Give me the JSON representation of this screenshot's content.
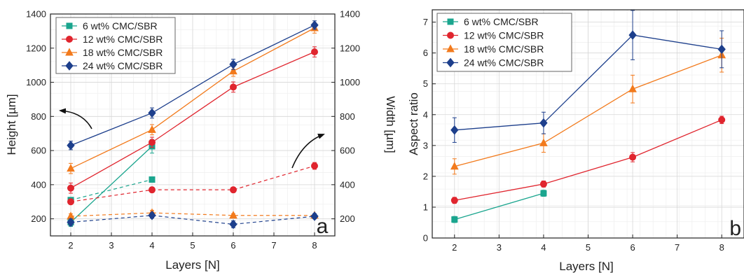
{
  "chart_data": [
    {
      "type": "line",
      "panel_label": "a",
      "xlabel": "Layers [N]",
      "ylabel": "Height [µm]",
      "y2label": "Width [µm]",
      "xlim": [
        1.5,
        8.5
      ],
      "ylim": [
        100,
        1400
      ],
      "y2lim": [
        100,
        1400
      ],
      "xticks": [
        2,
        3,
        4,
        5,
        6,
        7,
        8
      ],
      "yticks": [
        200,
        400,
        600,
        800,
        1000,
        1200,
        1400
      ],
      "y2ticks": [
        200,
        400,
        600,
        800,
        1000,
        1200,
        1400
      ],
      "grid": true,
      "legend_position": "top-left",
      "series": [
        {
          "name": "6 wt% CMC/SBR",
          "color": "#1aa58e",
          "marker": "square",
          "x": [
            2,
            4
          ],
          "height": [
            180,
            625
          ],
          "height_err": [
            25,
            40
          ],
          "width": [
            310,
            430
          ],
          "width_err": [
            15,
            15
          ]
        },
        {
          "name": "12 wt% CMC/SBR",
          "color": "#e0252e",
          "marker": "circle",
          "x": [
            2,
            4,
            6,
            8
          ],
          "height": [
            380,
            648,
            972,
            1178
          ],
          "height_err": [
            30,
            30,
            30,
            30
          ],
          "width": [
            300,
            370,
            370,
            510
          ],
          "width_err": [
            15,
            15,
            15,
            20
          ]
        },
        {
          "name": "18 wt% CMC/SBR",
          "color": "#f27a1c",
          "marker": "triangle",
          "x": [
            2,
            4,
            6,
            8
          ],
          "height": [
            495,
            722,
            1065,
            1318
          ],
          "height_err": [
            30,
            30,
            30,
            30
          ],
          "width": [
            215,
            235,
            220,
            220
          ],
          "width_err": [
            15,
            15,
            10,
            10
          ]
        },
        {
          "name": "24 wt% CMC/SBR",
          "color": "#1d3f8c",
          "marker": "diamond",
          "x": [
            2,
            4,
            6,
            8
          ],
          "height": [
            630,
            820,
            1105,
            1335
          ],
          "height_err": [
            25,
            30,
            30,
            25
          ],
          "width": [
            180,
            220,
            168,
            215
          ],
          "width_err": [
            20,
            15,
            20,
            15
          ]
        }
      ]
    },
    {
      "type": "line",
      "panel_label": "b",
      "xlabel": "Layers [N]",
      "ylabel": "Aspect ratio",
      "xlim": [
        1.5,
        8.5
      ],
      "ylim": [
        0,
        7.4
      ],
      "xticks": [
        2,
        3,
        4,
        5,
        6,
        7,
        8
      ],
      "yticks": [
        0,
        1,
        2,
        3,
        4,
        5,
        6,
        7
      ],
      "grid": true,
      "legend_position": "top-left",
      "series": [
        {
          "name": "6 wt% CMC/SBR",
          "color": "#1aa58e",
          "marker": "square",
          "x": [
            2,
            4
          ],
          "y": [
            0.6,
            1.45
          ],
          "err": [
            0.1,
            0.1
          ]
        },
        {
          "name": "12 wt% CMC/SBR",
          "color": "#e0252e",
          "marker": "circle",
          "x": [
            2,
            4,
            6,
            8
          ],
          "y": [
            1.22,
            1.75,
            2.62,
            3.83
          ],
          "err": [
            0.1,
            0.1,
            0.15,
            0.12
          ]
        },
        {
          "name": "18 wt% CMC/SBR",
          "color": "#f27a1c",
          "marker": "triangle",
          "x": [
            2,
            4,
            6,
            8
          ],
          "y": [
            2.32,
            3.08,
            4.83,
            5.93
          ],
          "err": [
            0.25,
            0.3,
            0.45,
            0.55
          ]
        },
        {
          "name": "24 wt% CMC/SBR",
          "color": "#1d3f8c",
          "marker": "diamond",
          "x": [
            2,
            4,
            6,
            8
          ],
          "y": [
            3.5,
            3.73,
            6.58,
            6.12
          ],
          "err": [
            0.4,
            0.35,
            0.8,
            0.6
          ]
        }
      ]
    }
  ]
}
